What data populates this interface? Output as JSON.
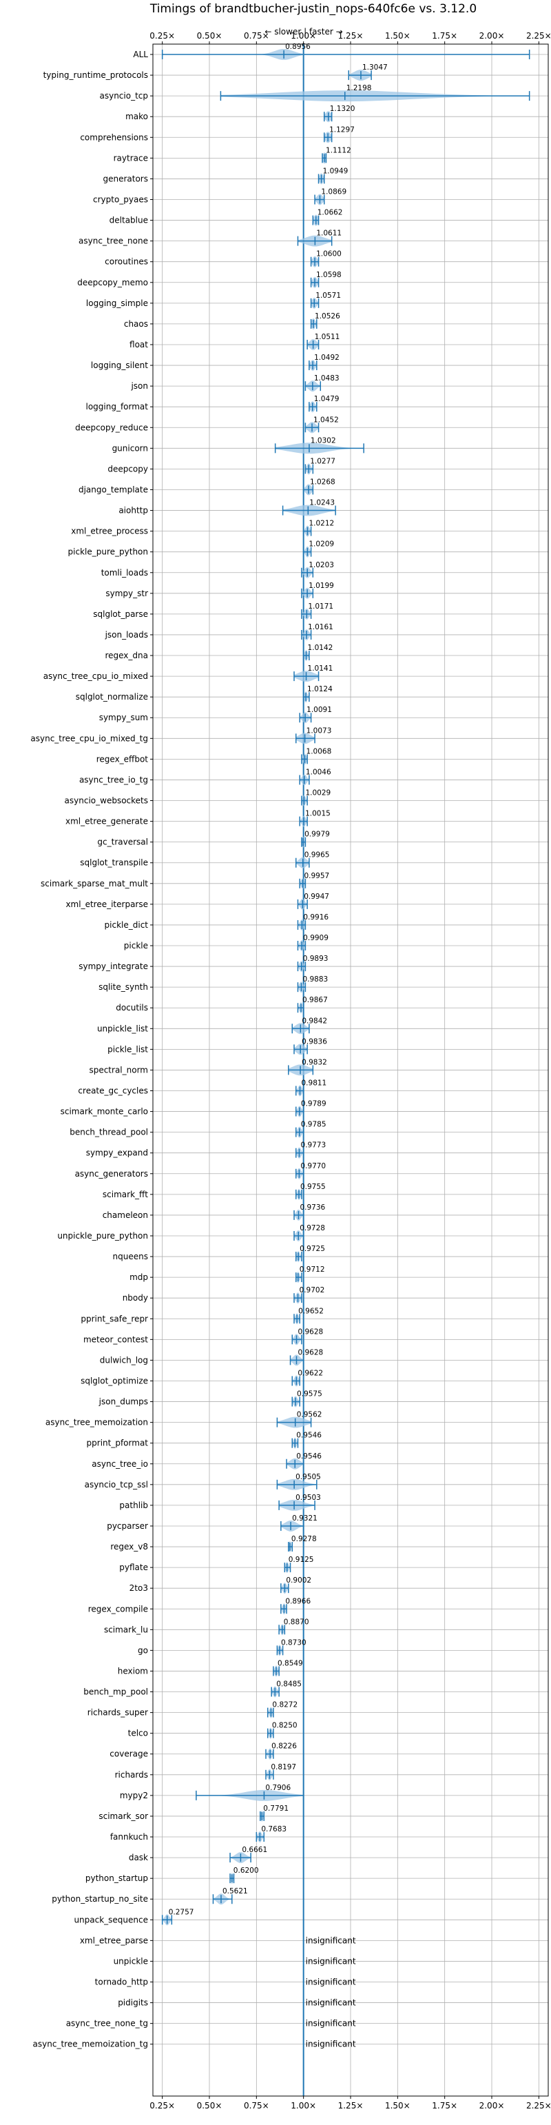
{
  "chart_data": {
    "type": "violin",
    "title": "Timings of brandtbucher-justin_nops-640fc6e vs. 3.12.0",
    "direction_label": "← slower | faster →",
    "insignificant_label": "insignificant",
    "xlim": [
      0.2,
      2.3
    ],
    "xticks": [
      0.25,
      0.5,
      0.75,
      1.0,
      1.25,
      1.5,
      1.75,
      2.0,
      2.25
    ],
    "xtick_labels": [
      "0.25×",
      "0.50×",
      "0.75×",
      "1.00×",
      "1.25×",
      "1.50×",
      "1.75×",
      "2.00×",
      "2.25×"
    ],
    "grid": true,
    "colors": {
      "axis_line": "#1f77b4",
      "violin": "#9ec6e6",
      "box": "#1f77b4",
      "median_dot": "#d62728",
      "grid": "#b0b0b0"
    },
    "benchmarks": [
      {
        "name": "ALL",
        "value": 0.8956,
        "label": "0.8956",
        "min": 0.25,
        "max": 2.2,
        "spread": 0.05
      },
      {
        "name": "typing_runtime_protocols",
        "value": 1.3047,
        "label": "1.3047",
        "min": 1.24,
        "max": 1.36,
        "spread": 0.035
      },
      {
        "name": "asyncio_tcp",
        "value": 1.2198,
        "label": "1.2198",
        "min": 0.56,
        "max": 2.2,
        "spread": 0.35
      },
      {
        "name": "mako",
        "value": 1.132,
        "label": "1.1320",
        "min": 1.11,
        "max": 1.15,
        "spread": 0.015
      },
      {
        "name": "comprehensions",
        "value": 1.1297,
        "label": "1.1297",
        "min": 1.11,
        "max": 1.15,
        "spread": 0.015
      },
      {
        "name": "raytrace",
        "value": 1.1112,
        "label": "1.1112",
        "min": 1.1,
        "max": 1.12,
        "spread": 0.01
      },
      {
        "name": "generators",
        "value": 1.0949,
        "label": "1.0949",
        "min": 1.08,
        "max": 1.11,
        "spread": 0.01
      },
      {
        "name": "crypto_pyaes",
        "value": 1.0869,
        "label": "1.0869",
        "min": 1.06,
        "max": 1.11,
        "spread": 0.015
      },
      {
        "name": "deltablue",
        "value": 1.0662,
        "label": "1.0662",
        "min": 1.05,
        "max": 1.08,
        "spread": 0.012
      },
      {
        "name": "async_tree_none",
        "value": 1.0611,
        "label": "1.0611",
        "min": 0.97,
        "max": 1.15,
        "spread": 0.05
      },
      {
        "name": "coroutines",
        "value": 1.06,
        "label": "1.0600",
        "min": 1.04,
        "max": 1.08,
        "spread": 0.012
      },
      {
        "name": "deepcopy_memo",
        "value": 1.0598,
        "label": "1.0598",
        "min": 1.04,
        "max": 1.08,
        "spread": 0.012
      },
      {
        "name": "logging_simple",
        "value": 1.0571,
        "label": "1.0571",
        "min": 1.04,
        "max": 1.08,
        "spread": 0.012
      },
      {
        "name": "chaos",
        "value": 1.0526,
        "label": "1.0526",
        "min": 1.04,
        "max": 1.07,
        "spread": 0.01
      },
      {
        "name": "float",
        "value": 1.0511,
        "label": "1.0511",
        "min": 1.02,
        "max": 1.08,
        "spread": 0.018
      },
      {
        "name": "logging_silent",
        "value": 1.0492,
        "label": "1.0492",
        "min": 1.03,
        "max": 1.07,
        "spread": 0.012
      },
      {
        "name": "json",
        "value": 1.0483,
        "label": "1.0483",
        "min": 1.01,
        "max": 1.09,
        "spread": 0.02
      },
      {
        "name": "logging_format",
        "value": 1.0479,
        "label": "1.0479",
        "min": 1.03,
        "max": 1.07,
        "spread": 0.012
      },
      {
        "name": "deepcopy_reduce",
        "value": 1.0452,
        "label": "1.0452",
        "min": 1.01,
        "max": 1.08,
        "spread": 0.02
      },
      {
        "name": "gunicorn",
        "value": 1.0302,
        "label": "1.0302",
        "min": 0.85,
        "max": 1.32,
        "spread": 0.1
      },
      {
        "name": "deepcopy",
        "value": 1.0277,
        "label": "1.0277",
        "min": 1.01,
        "max": 1.05,
        "spread": 0.01
      },
      {
        "name": "django_template",
        "value": 1.0268,
        "label": "1.0268",
        "min": 1.0,
        "max": 1.05,
        "spread": 0.015
      },
      {
        "name": "aiohttp",
        "value": 1.0243,
        "label": "1.0243",
        "min": 0.89,
        "max": 1.17,
        "spread": 0.07
      },
      {
        "name": "xml_etree_process",
        "value": 1.0212,
        "label": "1.0212",
        "min": 1.0,
        "max": 1.04,
        "spread": 0.01
      },
      {
        "name": "pickle_pure_python",
        "value": 1.0209,
        "label": "1.0209",
        "min": 1.0,
        "max": 1.04,
        "spread": 0.01
      },
      {
        "name": "tomli_loads",
        "value": 1.0203,
        "label": "1.0203",
        "min": 0.99,
        "max": 1.05,
        "spread": 0.015
      },
      {
        "name": "sympy_str",
        "value": 1.0199,
        "label": "1.0199",
        "min": 0.99,
        "max": 1.05,
        "spread": 0.015
      },
      {
        "name": "sqlglot_parse",
        "value": 1.0171,
        "label": "1.0171",
        "min": 0.99,
        "max": 1.04,
        "spread": 0.012
      },
      {
        "name": "json_loads",
        "value": 1.0161,
        "label": "1.0161",
        "min": 0.99,
        "max": 1.04,
        "spread": 0.012
      },
      {
        "name": "regex_dna",
        "value": 1.0142,
        "label": "1.0142",
        "min": 1.0,
        "max": 1.03,
        "spread": 0.008
      },
      {
        "name": "async_tree_cpu_io_mixed",
        "value": 1.0141,
        "label": "1.0141",
        "min": 0.95,
        "max": 1.08,
        "spread": 0.04
      },
      {
        "name": "sqlglot_normalize",
        "value": 1.0124,
        "label": "1.0124",
        "min": 1.0,
        "max": 1.03,
        "spread": 0.008
      },
      {
        "name": "sympy_sum",
        "value": 1.0091,
        "label": "1.0091",
        "min": 0.98,
        "max": 1.04,
        "spread": 0.015
      },
      {
        "name": "async_tree_cpu_io_mixed_tg",
        "value": 1.0073,
        "label": "1.0073",
        "min": 0.96,
        "max": 1.06,
        "spread": 0.03
      },
      {
        "name": "regex_effbot",
        "value": 1.0068,
        "label": "1.0068",
        "min": 0.99,
        "max": 1.02,
        "spread": 0.008
      },
      {
        "name": "async_tree_io_tg",
        "value": 1.0046,
        "label": "1.0046",
        "min": 0.98,
        "max": 1.03,
        "spread": 0.012
      },
      {
        "name": "asyncio_websockets",
        "value": 1.0029,
        "label": "1.0029",
        "min": 0.99,
        "max": 1.02,
        "spread": 0.008
      },
      {
        "name": "xml_etree_generate",
        "value": 1.0015,
        "label": "1.0015",
        "min": 0.98,
        "max": 1.02,
        "spread": 0.01
      },
      {
        "name": "gc_traversal",
        "value": 0.9979,
        "label": "0.9979",
        "min": 0.99,
        "max": 1.01,
        "spread": 0.006
      },
      {
        "name": "sqlglot_transpile",
        "value": 0.9965,
        "label": "0.9965",
        "min": 0.96,
        "max": 1.03,
        "spread": 0.02
      },
      {
        "name": "scimark_sparse_mat_mult",
        "value": 0.9957,
        "label": "0.9957",
        "min": 0.98,
        "max": 1.01,
        "spread": 0.008
      },
      {
        "name": "xml_etree_iterparse",
        "value": 0.9947,
        "label": "0.9947",
        "min": 0.97,
        "max": 1.02,
        "spread": 0.012
      },
      {
        "name": "pickle_dict",
        "value": 0.9916,
        "label": "0.9916",
        "min": 0.97,
        "max": 1.01,
        "spread": 0.01
      },
      {
        "name": "pickle",
        "value": 0.9909,
        "label": "0.9909",
        "min": 0.97,
        "max": 1.01,
        "spread": 0.01
      },
      {
        "name": "sympy_integrate",
        "value": 0.9893,
        "label": "0.9893",
        "min": 0.97,
        "max": 1.01,
        "spread": 0.01
      },
      {
        "name": "sqlite_synth",
        "value": 0.9883,
        "label": "0.9883",
        "min": 0.97,
        "max": 1.01,
        "spread": 0.01
      },
      {
        "name": "docutils",
        "value": 0.9867,
        "label": "0.9867",
        "min": 0.97,
        "max": 1.0,
        "spread": 0.008
      },
      {
        "name": "unpickle_list",
        "value": 0.9842,
        "label": "0.9842",
        "min": 0.94,
        "max": 1.03,
        "spread": 0.025
      },
      {
        "name": "pickle_list",
        "value": 0.9836,
        "label": "0.9836",
        "min": 0.95,
        "max": 1.02,
        "spread": 0.02
      },
      {
        "name": "spectral_norm",
        "value": 0.9832,
        "label": "0.9832",
        "min": 0.92,
        "max": 1.05,
        "spread": 0.04
      },
      {
        "name": "create_gc_cycles",
        "value": 0.9811,
        "label": "0.9811",
        "min": 0.96,
        "max": 1.0,
        "spread": 0.01
      },
      {
        "name": "scimark_monte_carlo",
        "value": 0.9789,
        "label": "0.9789",
        "min": 0.96,
        "max": 1.0,
        "spread": 0.01
      },
      {
        "name": "bench_thread_pool",
        "value": 0.9785,
        "label": "0.9785",
        "min": 0.96,
        "max": 1.0,
        "spread": 0.01
      },
      {
        "name": "sympy_expand",
        "value": 0.9773,
        "label": "0.9773",
        "min": 0.96,
        "max": 1.0,
        "spread": 0.01
      },
      {
        "name": "async_generators",
        "value": 0.977,
        "label": "0.9770",
        "min": 0.96,
        "max": 1.0,
        "spread": 0.01
      },
      {
        "name": "scimark_fft",
        "value": 0.9755,
        "label": "0.9755",
        "min": 0.96,
        "max": 0.99,
        "spread": 0.008
      },
      {
        "name": "chameleon",
        "value": 0.9736,
        "label": "0.9736",
        "min": 0.95,
        "max": 1.0,
        "spread": 0.012
      },
      {
        "name": "unpickle_pure_python",
        "value": 0.9728,
        "label": "0.9728",
        "min": 0.95,
        "max": 1.0,
        "spread": 0.012
      },
      {
        "name": "nqueens",
        "value": 0.9725,
        "label": "0.9725",
        "min": 0.96,
        "max": 0.99,
        "spread": 0.008
      },
      {
        "name": "mdp",
        "value": 0.9712,
        "label": "0.9712",
        "min": 0.96,
        "max": 0.99,
        "spread": 0.008
      },
      {
        "name": "nbody",
        "value": 0.9702,
        "label": "0.9702",
        "min": 0.95,
        "max": 0.99,
        "spread": 0.01
      },
      {
        "name": "pprint_safe_repr",
        "value": 0.9652,
        "label": "0.9652",
        "min": 0.95,
        "max": 0.98,
        "spread": 0.008
      },
      {
        "name": "meteor_contest",
        "value": 0.9628,
        "label": "0.9628",
        "min": 0.94,
        "max": 0.99,
        "spread": 0.012
      },
      {
        "name": "dulwich_log",
        "value": 0.9628,
        "label": "0.9628",
        "min": 0.93,
        "max": 1.0,
        "spread": 0.018
      },
      {
        "name": "sqlglot_optimize",
        "value": 0.9622,
        "label": "0.9622",
        "min": 0.94,
        "max": 0.98,
        "spread": 0.01
      },
      {
        "name": "json_dumps",
        "value": 0.9575,
        "label": "0.9575",
        "min": 0.94,
        "max": 0.98,
        "spread": 0.01
      },
      {
        "name": "async_tree_memoization",
        "value": 0.9562,
        "label": "0.9562",
        "min": 0.86,
        "max": 1.04,
        "spread": 0.05
      },
      {
        "name": "pprint_pformat",
        "value": 0.9546,
        "label": "0.9546",
        "min": 0.94,
        "max": 0.97,
        "spread": 0.008
      },
      {
        "name": "async_tree_io",
        "value": 0.9546,
        "label": "0.9546",
        "min": 0.91,
        "max": 1.0,
        "spread": 0.025
      },
      {
        "name": "asyncio_tcp_ssl",
        "value": 0.9505,
        "label": "0.9505",
        "min": 0.86,
        "max": 1.07,
        "spread": 0.05
      },
      {
        "name": "pathlib",
        "value": 0.9503,
        "label": "0.9503",
        "min": 0.87,
        "max": 1.06,
        "spread": 0.05
      },
      {
        "name": "pycparser",
        "value": 0.9321,
        "label": "0.9321",
        "min": 0.88,
        "max": 1.0,
        "spread": 0.03
      },
      {
        "name": "regex_v8",
        "value": 0.9278,
        "label": "0.9278",
        "min": 0.92,
        "max": 0.94,
        "spread": 0.006
      },
      {
        "name": "pyflate",
        "value": 0.9125,
        "label": "0.9125",
        "min": 0.9,
        "max": 0.93,
        "spread": 0.008
      },
      {
        "name": "2to3",
        "value": 0.9002,
        "label": "0.9002",
        "min": 0.88,
        "max": 0.92,
        "spread": 0.01
      },
      {
        "name": "regex_compile",
        "value": 0.8966,
        "label": "0.8966",
        "min": 0.88,
        "max": 0.91,
        "spread": 0.008
      },
      {
        "name": "scimark_lu",
        "value": 0.887,
        "label": "0.8870",
        "min": 0.87,
        "max": 0.9,
        "spread": 0.008
      },
      {
        "name": "go",
        "value": 0.873,
        "label": "0.8730",
        "min": 0.86,
        "max": 0.89,
        "spread": 0.008
      },
      {
        "name": "hexiom",
        "value": 0.8549,
        "label": "0.8549",
        "min": 0.84,
        "max": 0.87,
        "spread": 0.008
      },
      {
        "name": "bench_mp_pool",
        "value": 0.8485,
        "label": "0.8485",
        "min": 0.83,
        "max": 0.87,
        "spread": 0.01
      },
      {
        "name": "richards_super",
        "value": 0.8272,
        "label": "0.8272",
        "min": 0.81,
        "max": 0.84,
        "spread": 0.008
      },
      {
        "name": "telco",
        "value": 0.825,
        "label": "0.8250",
        "min": 0.81,
        "max": 0.84,
        "spread": 0.008
      },
      {
        "name": "coverage",
        "value": 0.8226,
        "label": "0.8226",
        "min": 0.8,
        "max": 0.84,
        "spread": 0.01
      },
      {
        "name": "richards",
        "value": 0.8197,
        "label": "0.8197",
        "min": 0.8,
        "max": 0.84,
        "spread": 0.01
      },
      {
        "name": "mypy2",
        "value": 0.7906,
        "label": "0.7906",
        "min": 0.43,
        "max": 1.0,
        "spread": 0.1
      },
      {
        "name": "scimark_sor",
        "value": 0.7791,
        "label": "0.7791",
        "min": 0.77,
        "max": 0.79,
        "spread": 0.006
      },
      {
        "name": "fannkuch",
        "value": 0.7683,
        "label": "0.7683",
        "min": 0.75,
        "max": 0.79,
        "spread": 0.01
      },
      {
        "name": "dask",
        "value": 0.6661,
        "label": "0.6661",
        "min": 0.61,
        "max": 0.72,
        "spread": 0.025
      },
      {
        "name": "python_startup",
        "value": 0.62,
        "label": "0.6200",
        "min": 0.61,
        "max": 0.63,
        "spread": 0.006
      },
      {
        "name": "python_startup_no_site",
        "value": 0.5621,
        "label": "0.5621",
        "min": 0.52,
        "max": 0.62,
        "spread": 0.02
      },
      {
        "name": "unpack_sequence",
        "value": 0.2757,
        "label": "0.2757",
        "min": 0.25,
        "max": 0.3,
        "spread": 0.012
      },
      {
        "name": "xml_etree_parse",
        "value": null,
        "label": "insignificant"
      },
      {
        "name": "unpickle",
        "value": null,
        "label": "insignificant"
      },
      {
        "name": "tornado_http",
        "value": null,
        "label": "insignificant"
      },
      {
        "name": "pidigits",
        "value": null,
        "label": "insignificant"
      },
      {
        "name": "async_tree_none_tg",
        "value": null,
        "label": "insignificant"
      },
      {
        "name": "async_tree_memoization_tg",
        "value": null,
        "label": "insignificant"
      }
    ]
  }
}
